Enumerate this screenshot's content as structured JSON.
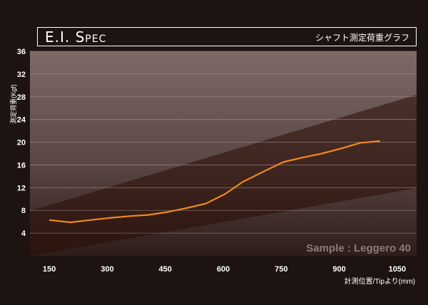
{
  "header": {
    "title": "E.I. Spec",
    "subtitle": "シャフト測定荷重グラフ"
  },
  "chart_data": {
    "type": "line",
    "ylabel": "測定荷重(Kgf)",
    "xlabel": "計測位置/Tipより(mm)",
    "annotation": "Sample : Leggero 40",
    "xlim": [
      100,
      1100
    ],
    "ylim": [
      0,
      36
    ],
    "xticks": [
      150,
      300,
      450,
      600,
      750,
      900,
      1050
    ],
    "yticks": [
      4,
      8,
      12,
      16,
      20,
      24,
      28,
      32,
      36
    ],
    "series": [
      {
        "color": "#f08a1c",
        "x": [
          150,
          205,
          255,
          310,
          360,
          405,
          455,
          505,
          555,
          605,
          650,
          700,
          755,
          805,
          855,
          905,
          955,
          1005
        ],
        "y": [
          6.3,
          5.9,
          6.3,
          6.7,
          7.0,
          7.2,
          7.7,
          8.4,
          9.2,
          10.9,
          13.0,
          14.7,
          16.5,
          17.3,
          18.0,
          18.9,
          19.9,
          20.2
        ]
      }
    ]
  }
}
